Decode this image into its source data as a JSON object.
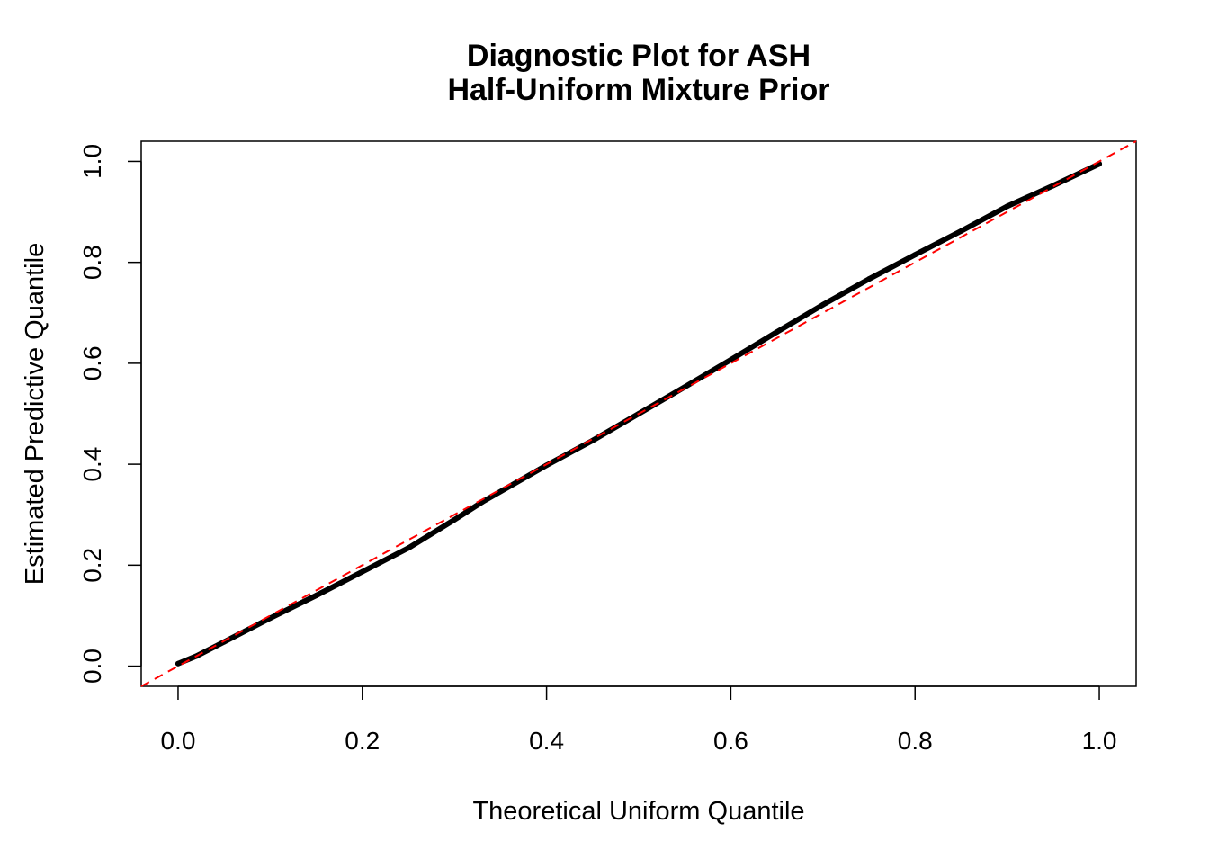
{
  "chart_data": {
    "type": "line",
    "title": "Diagnostic Plot for ASH",
    "subtitle": "Half-Uniform Mixture Prior",
    "xlabel": "Theoretical Uniform Quantile",
    "ylabel": "Estimated Predictive Quantile",
    "xlim": [
      -0.04,
      1.04
    ],
    "ylim": [
      -0.04,
      1.04
    ],
    "xticks": [
      "0.0",
      "0.2",
      "0.4",
      "0.6",
      "0.8",
      "1.0"
    ],
    "yticks": [
      "0.0",
      "0.2",
      "0.4",
      "0.6",
      "0.8",
      "1.0"
    ],
    "grid": false,
    "series": [
      {
        "color": "#000000",
        "x": [
          0,
          0.02,
          0.05,
          0.1,
          0.15,
          0.2,
          0.25,
          0.3,
          0.33,
          0.4,
          0.45,
          0.5,
          0.55,
          0.6,
          0.65,
          0.7,
          0.75,
          0.8,
          0.85,
          0.9,
          0.95,
          1.0
        ],
        "y": [
          0.005,
          0.02,
          0.048,
          0.095,
          0.14,
          0.187,
          0.234,
          0.29,
          0.325,
          0.398,
          0.447,
          0.5,
          0.553,
          0.607,
          0.662,
          0.716,
          0.767,
          0.815,
          0.862,
          0.911,
          0.952,
          0.995
        ]
      }
    ],
    "reference_line": {
      "intercept": 0,
      "slope": 1,
      "color": "#ff0000",
      "style": "dashed"
    }
  }
}
